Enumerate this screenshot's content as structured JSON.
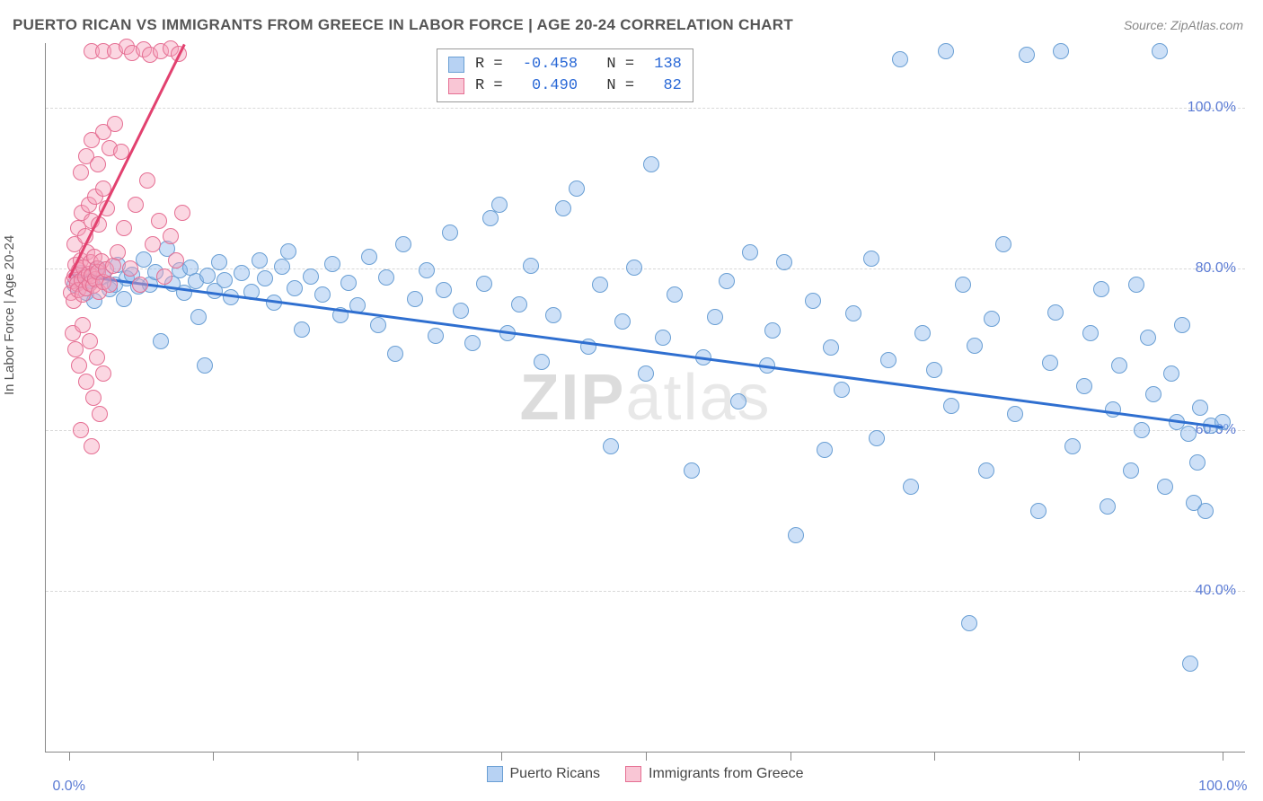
{
  "title": "PUERTO RICAN VS IMMIGRANTS FROM GREECE IN LABOR FORCE | AGE 20-24 CORRELATION CHART",
  "source": "Source: ZipAtlas.com",
  "ylabel": "In Labor Force | Age 20-24",
  "watermark_a": "ZIP",
  "watermark_b": "atlas",
  "chart": {
    "type": "scatter",
    "background_color": "#ffffff",
    "grid_color": "#d8d8d8",
    "axis_color": "#888888",
    "axis_font_color": "#5b7bd4",
    "axis_fontsize": 16,
    "xlim": [
      -2,
      102
    ],
    "ylim": [
      20,
      108
    ],
    "yticks": [
      40,
      60,
      80,
      100
    ],
    "ytick_labels": [
      "40.0%",
      "60.0%",
      "80.0%",
      "100.0%"
    ],
    "xticks": [
      0,
      50,
      100
    ],
    "xtick_labels": [
      "0.0%",
      "",
      "100.0%"
    ],
    "x_minor_ticks": [
      0,
      12.5,
      25,
      37.5,
      50,
      62.5,
      75,
      87.5,
      100
    ],
    "marker_size": 18,
    "series": [
      {
        "name": "Puerto Ricans",
        "color_fill": "rgba(135,180,235,0.42)",
        "color_stroke": "#6a9fd4",
        "klass": "blue",
        "trend": {
          "x1": 0,
          "y1": 79.5,
          "x2": 100,
          "y2": 60.5,
          "color": "#2f6fd0",
          "width": 3
        },
        "R": "-0.458",
        "N": "138",
        "points": [
          [
            0.5,
            78
          ],
          [
            1,
            79.5
          ],
          [
            1.5,
            77
          ],
          [
            2,
            78.5
          ],
          [
            2.2,
            76
          ],
          [
            2.5,
            80
          ],
          [
            3,
            79
          ],
          [
            3.5,
            77.5
          ],
          [
            4,
            78
          ],
          [
            4.2,
            80.5
          ],
          [
            4.8,
            76.2
          ],
          [
            5,
            78.8
          ],
          [
            5.5,
            79.3
          ],
          [
            6,
            77.8
          ],
          [
            6.5,
            81.2
          ],
          [
            7,
            78
          ],
          [
            7.5,
            79.6
          ],
          [
            8,
            71
          ],
          [
            8.5,
            82.5
          ],
          [
            9,
            78.2
          ],
          [
            9.6,
            79.8
          ],
          [
            10,
            77
          ],
          [
            10.5,
            80.2
          ],
          [
            11,
            78.5
          ],
          [
            11.2,
            74
          ],
          [
            11.8,
            68
          ],
          [
            12,
            79.2
          ],
          [
            12.6,
            77.3
          ],
          [
            13,
            80.8
          ],
          [
            13.5,
            78.6
          ],
          [
            14,
            76.5
          ],
          [
            15,
            79.5
          ],
          [
            15.8,
            77.2
          ],
          [
            16.5,
            81
          ],
          [
            17,
            78.8
          ],
          [
            17.8,
            75.8
          ],
          [
            18.5,
            80.3
          ],
          [
            19,
            82.2
          ],
          [
            19.6,
            77.6
          ],
          [
            20.2,
            72.5
          ],
          [
            21,
            79
          ],
          [
            22,
            76.8
          ],
          [
            22.8,
            80.6
          ],
          [
            23.5,
            74.2
          ],
          [
            24.2,
            78.3
          ],
          [
            25,
            75.5
          ],
          [
            26,
            81.5
          ],
          [
            26.8,
            73
          ],
          [
            27.5,
            78.9
          ],
          [
            28.3,
            69.5
          ],
          [
            29,
            83
          ],
          [
            30,
            76.2
          ],
          [
            31,
            79.8
          ],
          [
            31.8,
            71.7
          ],
          [
            32.5,
            77.4
          ],
          [
            33,
            84.5
          ],
          [
            34,
            74.8
          ],
          [
            35,
            70.8
          ],
          [
            36,
            78.2
          ],
          [
            36.5,
            86.3
          ],
          [
            37.3,
            88
          ],
          [
            38,
            72
          ],
          [
            39,
            75.6
          ],
          [
            40,
            80.4
          ],
          [
            41,
            68.5
          ],
          [
            42,
            74.2
          ],
          [
            42.8,
            87.5
          ],
          [
            44,
            90
          ],
          [
            45,
            70.3
          ],
          [
            46,
            78
          ],
          [
            47,
            58
          ],
          [
            48,
            73.5
          ],
          [
            49,
            80.2
          ],
          [
            50,
            67
          ],
          [
            50.5,
            93
          ],
          [
            51.5,
            71.5
          ],
          [
            52.5,
            76.8
          ],
          [
            54,
            55
          ],
          [
            55,
            69
          ],
          [
            56,
            74
          ],
          [
            57,
            78.5
          ],
          [
            58,
            63.5
          ],
          [
            59,
            82
          ],
          [
            60.5,
            68
          ],
          [
            61,
            72.3
          ],
          [
            62,
            80.8
          ],
          [
            63,
            47
          ],
          [
            64.5,
            76
          ],
          [
            65.5,
            57.5
          ],
          [
            66,
            70.2
          ],
          [
            67,
            65
          ],
          [
            68,
            74.5
          ],
          [
            69.5,
            81.3
          ],
          [
            70,
            59
          ],
          [
            71,
            68.7
          ],
          [
            72,
            106
          ],
          [
            73,
            53
          ],
          [
            74,
            72
          ],
          [
            75,
            67.5
          ],
          [
            76,
            107
          ],
          [
            76.5,
            63
          ],
          [
            77.5,
            78
          ],
          [
            78,
            36
          ],
          [
            78.5,
            70.5
          ],
          [
            79.5,
            55
          ],
          [
            80,
            73.8
          ],
          [
            81,
            83
          ],
          [
            82,
            62
          ],
          [
            83,
            106.5
          ],
          [
            84,
            50
          ],
          [
            85,
            68.3
          ],
          [
            85.5,
            74.6
          ],
          [
            86,
            107
          ],
          [
            87,
            58
          ],
          [
            88,
            65.5
          ],
          [
            88.5,
            72
          ],
          [
            89.5,
            77.5
          ],
          [
            90,
            50.5
          ],
          [
            90.5,
            62.5
          ],
          [
            91,
            68
          ],
          [
            92,
            55
          ],
          [
            92.5,
            78
          ],
          [
            93,
            60
          ],
          [
            93.5,
            71.5
          ],
          [
            94,
            64.5
          ],
          [
            94.5,
            107
          ],
          [
            95,
            53
          ],
          [
            95.5,
            67
          ],
          [
            96,
            61
          ],
          [
            96.5,
            73
          ],
          [
            97,
            59.5
          ],
          [
            97.2,
            31
          ],
          [
            97.5,
            51
          ],
          [
            97.8,
            56
          ],
          [
            98,
            62.8
          ],
          [
            98.5,
            50
          ],
          [
            99,
            60.5
          ],
          [
            100,
            61
          ]
        ]
      },
      {
        "name": "Immigrants from Greece",
        "color_fill": "rgba(245,160,185,0.42)",
        "color_stroke": "#e56f93",
        "klass": "pink",
        "trend": {
          "x1": 0,
          "y1": 79,
          "x2": 10,
          "y2": 108,
          "color": "#e2416f",
          "width": 3
        },
        "R": "0.490",
        "N": "82",
        "points": [
          [
            0.2,
            77
          ],
          [
            0.3,
            78.5
          ],
          [
            0.4,
            76
          ],
          [
            0.5,
            79
          ],
          [
            0.6,
            80.5
          ],
          [
            0.7,
            78.2
          ],
          [
            0.8,
            77.4
          ],
          [
            0.9,
            79.8
          ],
          [
            1.0,
            81
          ],
          [
            1.1,
            78.6
          ],
          [
            1.2,
            76.8
          ],
          [
            1.3,
            80.2
          ],
          [
            1.4,
            78.9
          ],
          [
            1.5,
            77.6
          ],
          [
            1.6,
            82
          ],
          [
            1.7,
            79.4
          ],
          [
            1.8,
            78.1
          ],
          [
            1.9,
            80.8
          ],
          [
            2.0,
            79.2
          ],
          [
            2.1,
            77.9
          ],
          [
            2.2,
            81.5
          ],
          [
            2.3,
            78.7
          ],
          [
            2.4,
            80
          ],
          [
            2.5,
            79.6
          ],
          [
            2.6,
            77.2
          ],
          [
            2.8,
            80.9
          ],
          [
            3.0,
            78.4
          ],
          [
            3.2,
            79.9
          ],
          [
            3.5,
            78
          ],
          [
            3.8,
            80.4
          ],
          [
            0.5,
            83
          ],
          [
            0.8,
            85
          ],
          [
            1.1,
            87
          ],
          [
            1.4,
            84
          ],
          [
            1.7,
            88
          ],
          [
            2.0,
            86
          ],
          [
            2.3,
            89
          ],
          [
            2.6,
            85.5
          ],
          [
            3.0,
            90
          ],
          [
            3.3,
            87.5
          ],
          [
            1.0,
            92
          ],
          [
            1.5,
            94
          ],
          [
            2.0,
            96
          ],
          [
            2.5,
            93
          ],
          [
            3.0,
            97
          ],
          [
            3.5,
            95
          ],
          [
            4.0,
            98
          ],
          [
            4.5,
            94.5
          ],
          [
            0.3,
            72
          ],
          [
            0.6,
            70
          ],
          [
            0.9,
            68
          ],
          [
            1.2,
            73
          ],
          [
            1.5,
            66
          ],
          [
            1.8,
            71
          ],
          [
            2.1,
            64
          ],
          [
            2.4,
            69
          ],
          [
            2.7,
            62
          ],
          [
            3.0,
            67
          ],
          [
            1.0,
            60
          ],
          [
            2.0,
            58
          ],
          [
            2.0,
            107
          ],
          [
            3.0,
            107
          ],
          [
            4.0,
            107
          ],
          [
            5.0,
            107.5
          ],
          [
            5.5,
            106.8
          ],
          [
            6.5,
            107.2
          ],
          [
            7.0,
            106.5
          ],
          [
            8.0,
            107
          ],
          [
            8.8,
            107.3
          ],
          [
            9.5,
            106.7
          ],
          [
            4.2,
            82
          ],
          [
            4.8,
            85
          ],
          [
            5.3,
            80
          ],
          [
            5.8,
            88
          ],
          [
            6.2,
            78
          ],
          [
            6.8,
            91
          ],
          [
            7.3,
            83
          ],
          [
            7.8,
            86
          ],
          [
            8.3,
            79
          ],
          [
            8.8,
            84
          ],
          [
            9.3,
            81
          ],
          [
            9.8,
            87
          ]
        ]
      }
    ]
  },
  "legend_top": {
    "rows": [
      {
        "sw": "sw-blue",
        "text_a": "R = ",
        "val_a": "-0.458",
        "text_b": "  N = ",
        "val_b": "138"
      },
      {
        "sw": "sw-pink",
        "text_a": "R = ",
        "val_a": " 0.490",
        "text_b": "  N = ",
        "val_b": " 82"
      }
    ]
  },
  "legend_bottom": {
    "items": [
      {
        "sw": "sw-blue",
        "label": "Puerto Ricans"
      },
      {
        "sw": "sw-pink",
        "label": "Immigrants from Greece"
      }
    ]
  }
}
